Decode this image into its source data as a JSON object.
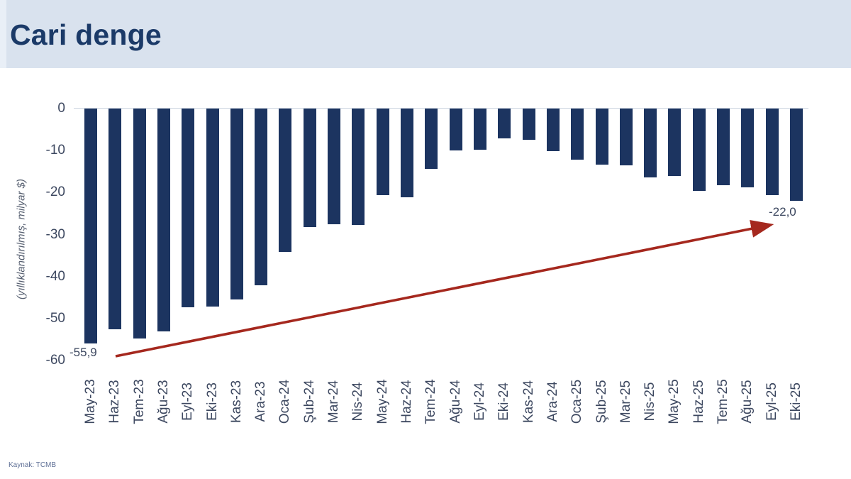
{
  "header": {
    "title": "Cari denge"
  },
  "source": "Kaynak: TCMB",
  "colors": {
    "header_bg": "#d9e2ee",
    "title": "#1b3a68",
    "bar": "#1c3460",
    "arrow": "#a5281e",
    "axis_text": "#3d4860",
    "ylabel_text": "#565f70",
    "source_text": "#5f7096"
  },
  "chart_data": {
    "type": "bar",
    "title": "Cari denge",
    "ylabel": "(yıllıklandırılmış, milyar $)",
    "xlabel": "",
    "ylim": [
      -60,
      0
    ],
    "yticks": [
      0,
      -10,
      -20,
      -30,
      -40,
      -50,
      -60
    ],
    "grid": false,
    "legend": "none",
    "categories": [
      "May-23",
      "Haz-23",
      "Tem-23",
      "Ağu-23",
      "Eyl-23",
      "Eki-23",
      "Kas-23",
      "Ara-23",
      "Oca-24",
      "Şub-24",
      "Mar-24",
      "Nis-24",
      "May-24",
      "Haz-24",
      "Tem-24",
      "Ağu-24",
      "Eyl-24",
      "Eki-24",
      "Kas-24",
      "Ara-24",
      "Oca-25",
      "Şub-25",
      "Mar-25",
      "Nis-25",
      "May-25",
      "Haz-25",
      "Tem-25",
      "Ağu-25",
      "Eyl-25",
      "Eki-25"
    ],
    "values": [
      -55.9,
      -52.5,
      -54.7,
      -53.0,
      -47.3,
      -47.1,
      -45.5,
      -42.0,
      -34.1,
      -28.2,
      -27.6,
      -27.8,
      -20.7,
      -21.2,
      -14.4,
      -10.0,
      -9.8,
      -7.1,
      -7.4,
      -10.2,
      -12.2,
      -13.3,
      -13.6,
      -16.4,
      -16.1,
      -19.6,
      -18.2,
      -18.7,
      -20.6,
      -22.0
    ],
    "annotations": {
      "start": {
        "text": "-55,9",
        "anchor": "May-23"
      },
      "end": {
        "text": "-22,0",
        "anchor": "Eki-25"
      }
    },
    "trend_arrow": {
      "from": "May-23",
      "to": "Eki-25",
      "direction": "up-right"
    }
  }
}
